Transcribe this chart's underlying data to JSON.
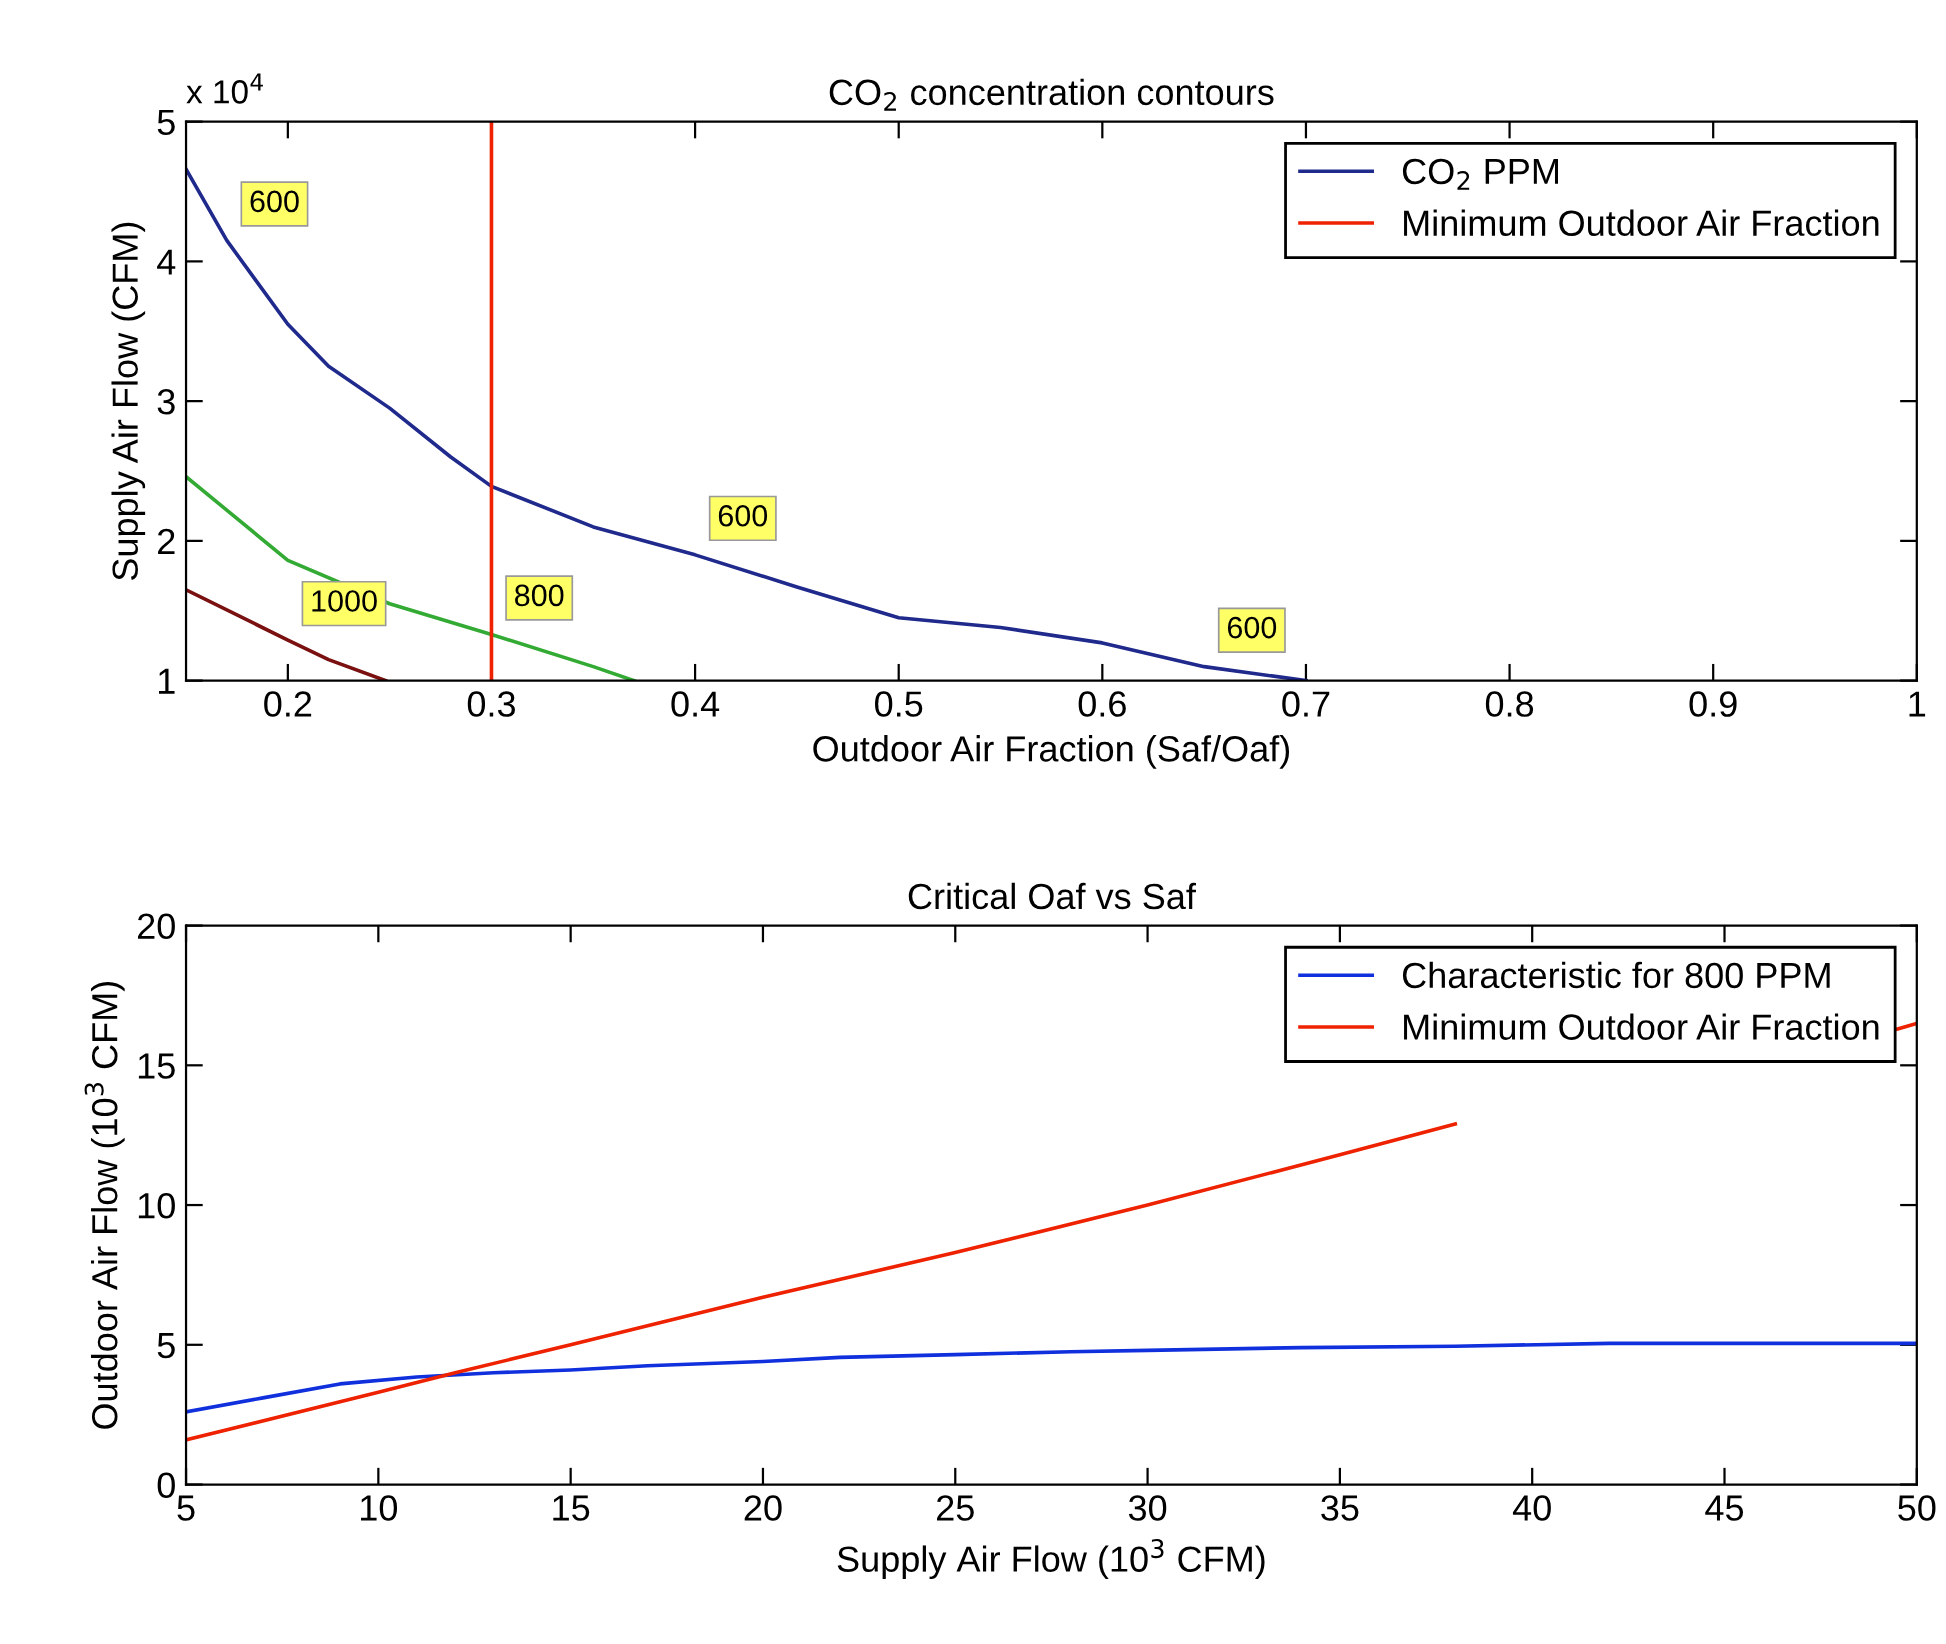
{
  "chart_data": [
    {
      "type": "line",
      "title": "CO$_{2}$ concentration contours",
      "xlabel": "Outdoor Air Fraction (Saf/Oaf)",
      "ylabel": "Supply Air Flow (CFM)",
      "xlim": [
        0.15,
        1
      ],
      "xticks": [
        0.2,
        0.3,
        0.4,
        0.5,
        0.6,
        0.7,
        0.8,
        0.9,
        1
      ],
      "ylim": [
        1,
        5
      ],
      "yticks": [
        1,
        2,
        3,
        4,
        5
      ],
      "series": [
        {
          "name": "CO$_{2}$ PPM",
          "color": "#1f2a8c",
          "x": [
            0.15,
            0.17,
            0.2,
            0.22,
            0.25,
            0.28,
            0.3,
            0.35,
            0.4,
            0.45,
            0.5,
            0.55,
            0.6,
            0.65,
            0.7
          ],
          "values": [
            4.66,
            4.15,
            3.55,
            3.25,
            2.95,
            2.6,
            2.39,
            2.1,
            1.9,
            1.67,
            1.45,
            1.38,
            1.27,
            1.1,
            1.0
          ]
        },
        {
          "color": "#33aa33",
          "x": [
            0.15,
            0.2,
            0.25,
            0.3,
            0.35,
            0.37
          ],
          "values": [
            2.46,
            1.86,
            1.55,
            1.33,
            1.1,
            1.0
          ]
        },
        {
          "color": "#7a1010",
          "x": [
            0.15,
            0.2,
            0.22,
            0.248
          ],
          "values": [
            1.65,
            1.29,
            1.15,
            1.0
          ]
        },
        {
          "name": "Minimum Outdoor Air Fraction",
          "color": "#ee2200",
          "x": [
            0.3,
            0.3
          ],
          "values": [
            1,
            5
          ]
        }
      ],
      "annotations": [
        "x 10$^{4}$",
        {
          "text": "600",
          "x": 0.17,
          "y": 4.15
        },
        {
          "text": "600",
          "x": 0.4,
          "y": 1.9
        },
        {
          "text": "600",
          "x": 0.65,
          "y": 1.1
        },
        {
          "text": "1000",
          "x": 0.2,
          "y": 1.29
        },
        {
          "text": "800",
          "x": 0.3,
          "y": 1.33
        }
      ],
      "legend": "top right"
    },
    {
      "type": "line",
      "title": "Critical Oaf vs Saf",
      "xlabel": "Supply Air Flow (10$^{3}$ CFM)",
      "ylabel": "Outdoor Air Flow (10$^{3}$ CFM)",
      "xlim": [
        5,
        50
      ],
      "xticks": [
        5,
        10,
        15,
        20,
        25,
        30,
        35,
        40,
        45,
        50
      ],
      "ylim": [
        0,
        20
      ],
      "yticks": [
        0,
        5,
        10,
        15,
        20
      ],
      "series": [
        {
          "name": "Characteristic for 800 PPM",
          "color": "#1030dd",
          "x": [
            5,
            7,
            9,
            11,
            13,
            15,
            17,
            20,
            22,
            25,
            28,
            30,
            34,
            38,
            42,
            46,
            50
          ],
          "values": [
            2.6,
            3.1,
            3.6,
            3.85,
            4.0,
            4.1,
            4.25,
            4.4,
            4.55,
            4.65,
            4.75,
            4.8,
            4.9,
            4.95,
            5.05,
            5.05,
            5.05
          ]
        },
        {
          "name": "Minimum Outdoor Air Fraction",
          "color": "#ee2200",
          "x": [
            5,
            10,
            12,
            15,
            20,
            25,
            30,
            35,
            38,
            42,
            45,
            49.5,
            50
          ],
          "values": [
            1.6,
            3.3,
            4.0,
            5.0,
            6.7,
            8.3,
            10.0,
            11.8,
            12.9,
            null,
            null,
            16.3,
            16.5
          ]
        }
      ],
      "legend": "top right"
    }
  ]
}
